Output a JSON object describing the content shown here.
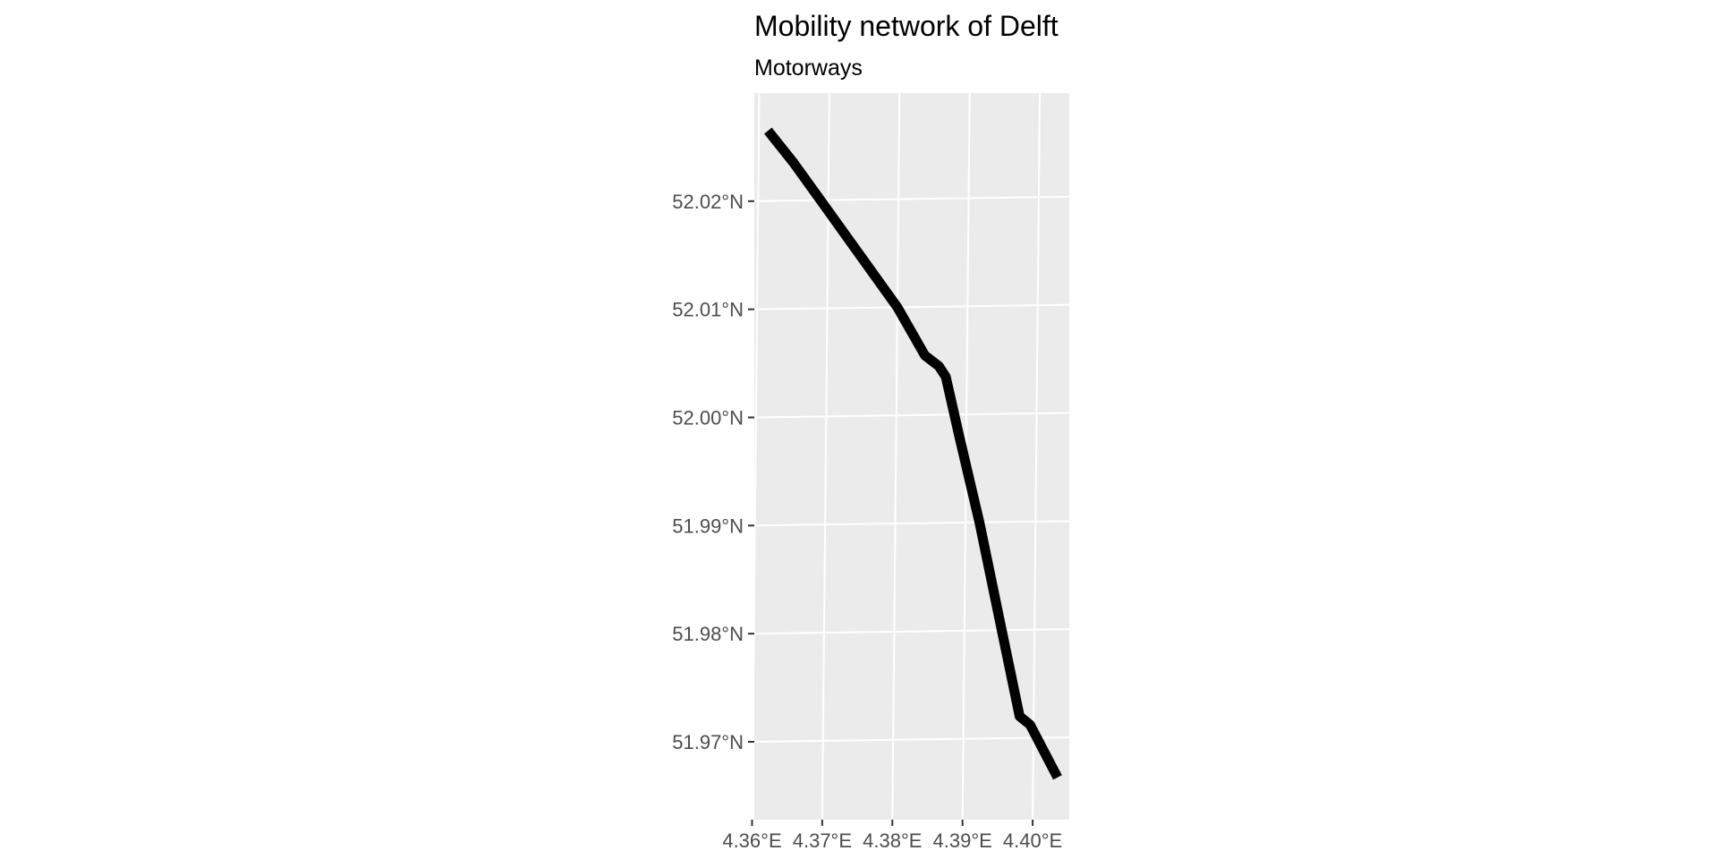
{
  "map": {
    "title": "Mobility network of Delft",
    "subtitle": "Motorways",
    "panel_color": "#ebebeb",
    "grid_color": "#ffffff",
    "road_color": "#000000",
    "lon_range": [
      4.3593,
      4.4042
    ],
    "lat_range": [
      51.9628,
      52.03
    ],
    "lon_ticks": [
      {
        "value": 4.36,
        "label": "4.36°E"
      },
      {
        "value": 4.37,
        "label": "4.37°E"
      },
      {
        "value": 4.38,
        "label": "4.38°E"
      },
      {
        "value": 4.39,
        "label": "4.39°E"
      },
      {
        "value": 4.4,
        "label": "4.40°E"
      }
    ],
    "lat_ticks": [
      {
        "value": 52.02,
        "label": "52.02°N"
      },
      {
        "value": 52.01,
        "label": "52.01°N"
      },
      {
        "value": 52.0,
        "label": "52.00°N"
      },
      {
        "value": 51.99,
        "label": "51.99°N"
      },
      {
        "value": 51.98,
        "label": "51.98°N"
      },
      {
        "value": 51.97,
        "label": "51.97°N"
      }
    ],
    "motorway": [
      [
        4.3613,
        52.0265
      ],
      [
        4.365,
        52.0235
      ],
      [
        4.37,
        52.019
      ],
      [
        4.375,
        52.0145
      ],
      [
        4.38,
        52.01
      ],
      [
        4.384,
        52.0055
      ],
      [
        4.386,
        52.0045
      ],
      [
        4.387,
        52.0035
      ],
      [
        4.389,
        51.998
      ],
      [
        4.392,
        51.99
      ],
      [
        4.395,
        51.981
      ],
      [
        4.398,
        51.972
      ],
      [
        4.3995,
        51.9712
      ],
      [
        4.4035,
        51.9663
      ]
    ]
  }
}
